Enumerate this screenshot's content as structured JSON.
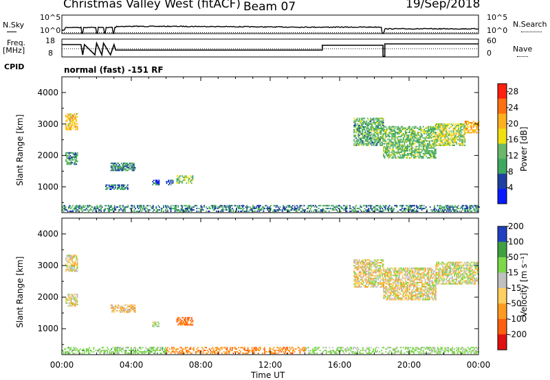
{
  "header": {
    "radar": "Christmas Valley West (fitACF)",
    "beam": "Beam 07",
    "date": "19/Sep/2018"
  },
  "noise_panel": {
    "left_label": "N.Sky",
    "right_label": "N.Search",
    "top_tick": "10^5",
    "bottom_tick": "10^0"
  },
  "freq_panel": {
    "left_label_1": "Freq.",
    "left_label_2": "[MHz]",
    "left_ticks": [
      "18",
      "8"
    ],
    "right_ticks": [
      "60",
      "0"
    ],
    "right_label": "Nave",
    "cpid_label": "CPID"
  },
  "cpid_text": "normal (fast) -151 RF",
  "x_axis": {
    "label": "Time UT",
    "ticks": [
      "00:00",
      "04:00",
      "08:00",
      "12:00",
      "16:00",
      "20:00",
      "00:00"
    ]
  },
  "colors": {
    "power": [
      "#0a1aff",
      "#1f3fa0",
      "#3fa860",
      "#6ab86a",
      "#f0e010",
      "#ffb020",
      "#ff7010",
      "#ff2010"
    ],
    "velocity": [
      "#e01010",
      "#ff6010",
      "#ff9a20",
      "#ffd060",
      "#c0c0c0",
      "#7dd84a",
      "#40a040",
      "#2040c0"
    ]
  },
  "chart_data": [
    {
      "type": "heatmap",
      "title": "",
      "ylabel": "Slant Range [km]",
      "xlabel": "",
      "x_range_hours": [
        0,
        24
      ],
      "y_range_km": [
        180,
        4500
      ],
      "y_ticks": [
        "1000",
        "2000",
        "3000",
        "4000"
      ],
      "colorbar": {
        "label": "Power [dB]",
        "ticks": [
          "4",
          "8",
          "12",
          "16",
          "20",
          "24",
          "28"
        ],
        "range": [
          0,
          30
        ]
      },
      "echo_regions": [
        {
          "t_start": 0.2,
          "t_end": 0.9,
          "r_start": 2800,
          "r_end": 3300,
          "level": 20
        },
        {
          "t_start": 0.2,
          "t_end": 0.9,
          "r_start": 1700,
          "r_end": 2100,
          "level": 10
        },
        {
          "t_start": 2.5,
          "t_end": 3.8,
          "r_start": 900,
          "r_end": 1050,
          "level": 8
        },
        {
          "t_start": 2.8,
          "t_end": 4.2,
          "r_start": 1500,
          "r_end": 1750,
          "level": 9
        },
        {
          "t_start": 5.2,
          "t_end": 5.6,
          "r_start": 1050,
          "r_end": 1200,
          "level": 6
        },
        {
          "t_start": 6.0,
          "t_end": 6.4,
          "r_start": 1050,
          "r_end": 1200,
          "level": 5
        },
        {
          "t_start": 6.6,
          "t_end": 7.5,
          "r_start": 1100,
          "r_end": 1350,
          "level": 14
        },
        {
          "t_start": 0.0,
          "t_end": 24.0,
          "r_start": 200,
          "r_end": 420,
          "level": 9
        },
        {
          "t_start": 16.8,
          "t_end": 18.5,
          "r_start": 2300,
          "r_end": 3200,
          "level": 12
        },
        {
          "t_start": 18.5,
          "t_end": 21.5,
          "r_start": 1900,
          "r_end": 2900,
          "level": 13
        },
        {
          "t_start": 21.5,
          "t_end": 23.2,
          "r_start": 2300,
          "r_end": 3000,
          "level": 16
        },
        {
          "t_start": 23.2,
          "t_end": 24.0,
          "r_start": 2700,
          "r_end": 3100,
          "level": 22
        }
      ]
    },
    {
      "type": "heatmap",
      "title": "",
      "ylabel": "Slant Range [km]",
      "xlabel": "Time UT",
      "x_range_hours": [
        0,
        24
      ],
      "y_range_km": [
        180,
        4500
      ],
      "y_ticks": [
        "1000",
        "2000",
        "3000",
        "4000"
      ],
      "colorbar": {
        "label": "Velocity [m s⁻¹]",
        "ticks": [
          "-200",
          "-100",
          "-50",
          "-15",
          "15",
          "50",
          "100",
          "200"
        ],
        "range": [
          -250,
          250
        ]
      },
      "echo_regions": [
        {
          "t_start": 0.2,
          "t_end": 0.9,
          "r_start": 2800,
          "r_end": 3300,
          "level": 0
        },
        {
          "t_start": 0.2,
          "t_end": 0.9,
          "r_start": 1700,
          "r_end": 2100,
          "level": 0
        },
        {
          "t_start": 2.8,
          "t_end": 4.2,
          "r_start": 1500,
          "r_end": 1750,
          "level": -10
        },
        {
          "t_start": 5.2,
          "t_end": 5.6,
          "r_start": 1050,
          "r_end": 1200,
          "level": 20
        },
        {
          "t_start": 6.6,
          "t_end": 7.5,
          "r_start": 1100,
          "r_end": 1350,
          "level": -60
        },
        {
          "t_start": 0.0,
          "t_end": 6.0,
          "r_start": 200,
          "r_end": 420,
          "level": 30
        },
        {
          "t_start": 6.0,
          "t_end": 14.0,
          "r_start": 200,
          "r_end": 420,
          "level": -40
        },
        {
          "t_start": 14.0,
          "t_end": 24.0,
          "r_start": 200,
          "r_end": 420,
          "level": 25
        },
        {
          "t_start": 16.8,
          "t_end": 18.5,
          "r_start": 2300,
          "r_end": 3200,
          "level": 0
        },
        {
          "t_start": 18.5,
          "t_end": 21.5,
          "r_start": 1900,
          "r_end": 2900,
          "level": 0
        },
        {
          "t_start": 21.5,
          "t_end": 24.0,
          "r_start": 2400,
          "r_end": 3100,
          "level": 5
        }
      ]
    }
  ]
}
